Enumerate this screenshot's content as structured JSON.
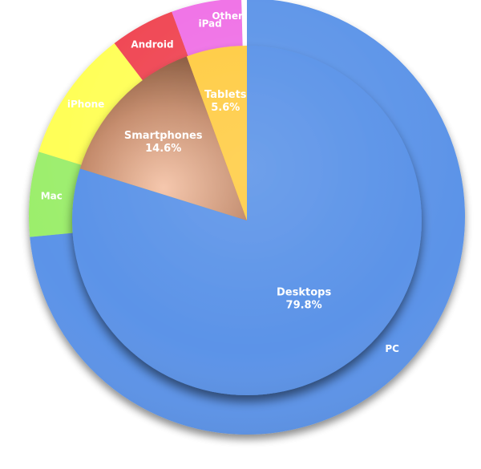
{
  "chart_data": {
    "type": "pie",
    "subtype": "nested-pie",
    "title": "",
    "legend": "none",
    "inner": {
      "categories": [
        "Desktops",
        "Smartphones",
        "Tablets"
      ],
      "values": [
        79.8,
        14.6,
        5.6
      ],
      "labels": [
        "79.8%",
        "14.6%",
        "5.6%"
      ],
      "colors": [
        "#5b93e8",
        "#c9957a",
        "#ffcc44"
      ]
    },
    "outer": {
      "categories": [
        "PC",
        "Mac",
        "iPhone",
        "Android",
        "iPad",
        "Other"
      ],
      "values": [
        73.5,
        6.3,
        9.8,
        4.8,
        5.2,
        0.4
      ],
      "colors": [
        "#5b93e8",
        "#9cee6c",
        "#ffff55",
        "#ef4451",
        "#ef6fe6",
        "#ffffff"
      ]
    }
  }
}
